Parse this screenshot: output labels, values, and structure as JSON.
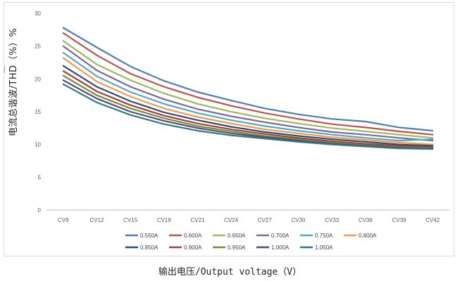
{
  "chart_data": {
    "type": "line",
    "ylabel": "电流总谐波/THD（%）%",
    "xlabel": "输出电压/Output voltage（V）",
    "categories": [
      "CV9",
      "CV12",
      "CV15",
      "CV18",
      "CV21",
      "CV24",
      "CV27",
      "CV30",
      "CV33",
      "CV36",
      "CV39",
      "CV42"
    ],
    "ylim": [
      0,
      30
    ],
    "yticks": [
      0,
      5,
      10,
      15,
      20,
      25,
      30
    ],
    "grid": false,
    "legend_position": "bottom",
    "series": [
      {
        "name": "0.550A",
        "color": "#4a7fb8",
        "values": [
          27.8,
          24.8,
          21.9,
          19.7,
          18.0,
          16.7,
          15.5,
          14.6,
          13.9,
          13.5,
          12.6,
          12.1
        ]
      },
      {
        "name": "0.600A",
        "color": "#c0504d",
        "values": [
          27.0,
          23.6,
          20.8,
          18.8,
          17.2,
          15.9,
          14.8,
          13.9,
          13.1,
          12.6,
          12.0,
          11.5
        ]
      },
      {
        "name": "0.650A",
        "color": "#9bbb59",
        "values": [
          25.8,
          22.2,
          19.8,
          17.8,
          16.2,
          15.0,
          14.0,
          13.2,
          12.5,
          12.0,
          11.5,
          11.0
        ]
      },
      {
        "name": "0.700A",
        "color": "#8064a2",
        "values": [
          25.0,
          21.3,
          18.8,
          16.9,
          15.4,
          14.3,
          13.4,
          12.6,
          11.9,
          11.5,
          11.0,
          10.6
        ]
      },
      {
        "name": "0.750A",
        "color": "#4bacc6",
        "values": [
          24.0,
          20.4,
          18.0,
          16.2,
          14.8,
          13.7,
          12.8,
          12.1,
          11.5,
          11.0,
          10.6,
          10.8
        ]
      },
      {
        "name": "0.800A",
        "color": "#f79646",
        "values": [
          23.2,
          19.6,
          17.3,
          15.5,
          14.2,
          13.2,
          12.3,
          11.7,
          11.1,
          10.7,
          10.3,
          10.0
        ]
      },
      {
        "name": "0.850A",
        "color": "#2c4d75",
        "values": [
          22.0,
          18.8,
          16.6,
          14.9,
          13.7,
          12.7,
          11.9,
          11.3,
          10.8,
          10.4,
          10.0,
          9.8
        ]
      },
      {
        "name": "0.900A",
        "color": "#a53b3b",
        "values": [
          21.2,
          18.1,
          16.0,
          14.4,
          13.2,
          12.3,
          11.6,
          11.0,
          10.5,
          10.1,
          9.8,
          9.6
        ]
      },
      {
        "name": "0.950A",
        "color": "#6e8e36",
        "values": [
          20.5,
          17.5,
          15.5,
          14.0,
          12.8,
          12.0,
          11.3,
          10.8,
          10.3,
          9.9,
          9.6,
          9.5
        ]
      },
      {
        "name": "1.000A",
        "color": "#5c4677",
        "values": [
          19.8,
          17.0,
          15.0,
          13.6,
          12.5,
          11.7,
          11.1,
          10.6,
          10.1,
          9.8,
          9.5,
          9.4
        ]
      },
      {
        "name": "1.050A",
        "color": "#2b7a87",
        "values": [
          19.2,
          16.4,
          14.5,
          13.1,
          12.1,
          11.4,
          10.9,
          10.4,
          10.0,
          9.7,
          9.4,
          9.3
        ]
      }
    ]
  }
}
